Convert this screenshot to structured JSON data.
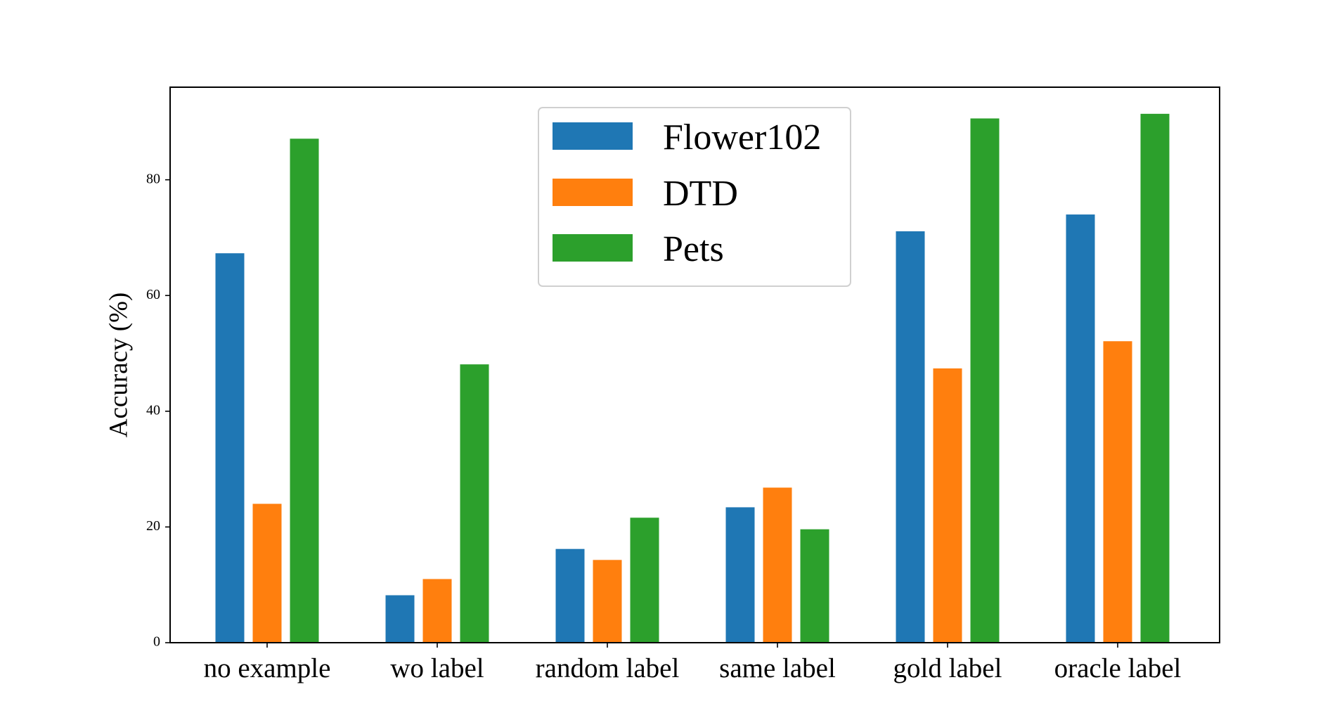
{
  "chart_data": {
    "type": "bar",
    "title": "",
    "xlabel": "",
    "ylabel": "Accuracy (%)",
    "ylim": [
      0,
      96
    ],
    "yticks": [
      0,
      20,
      40,
      60,
      80
    ],
    "grid": false,
    "legend_position": "top-center",
    "categories": [
      "no example",
      "wo label",
      "random label",
      "same label",
      "gold label",
      "oracle label"
    ],
    "series": [
      {
        "name": "Flower102",
        "color": "#1f77b4",
        "values": [
          67.3,
          8.2,
          16.2,
          23.4,
          71.1,
          74.0
        ]
      },
      {
        "name": "DTD",
        "color": "#ff7f0e",
        "values": [
          24.0,
          11.0,
          14.3,
          26.8,
          47.4,
          52.1
        ]
      },
      {
        "name": "Pets",
        "color": "#2ca02c",
        "values": [
          87.1,
          48.1,
          21.6,
          19.6,
          90.6,
          91.4
        ]
      }
    ]
  }
}
